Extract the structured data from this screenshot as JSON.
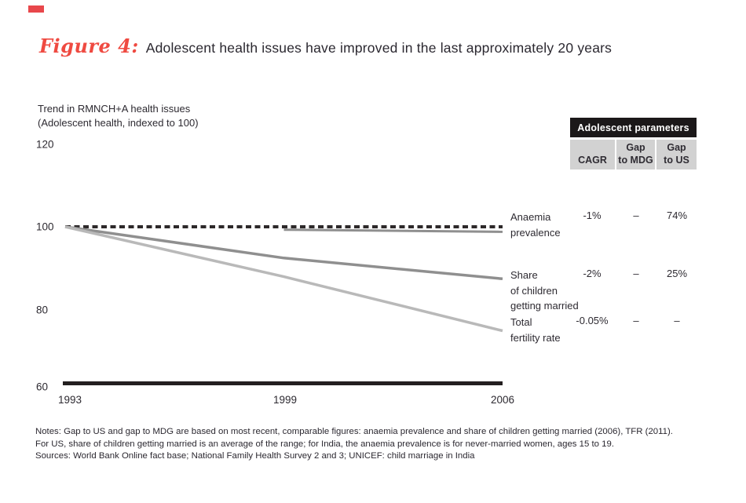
{
  "header": {
    "figure_label": "Figure 4:",
    "title": "Adolescent health issues have improved in the last approximately 20 years",
    "accent_color": "#ef4a41"
  },
  "axis": {
    "y_title_line1": "Trend in RMNCH+A health issues",
    "y_title_line2": "(Adolescent health, indexed to 100)",
    "y_ticks": {
      "t120": "120",
      "t100": "100",
      "t80": "80",
      "t60": "60"
    },
    "x_ticks": {
      "t1993": "1993",
      "t1999": "1999",
      "t2006": "2006"
    }
  },
  "chart_data": {
    "type": "line",
    "title": "Adolescent health issues have improved in the last approximately 20 years",
    "ylabel": "Trend in RMNCH+A health issues (Adolescent health, indexed to 100)",
    "x_tick_labels": [
      "1993",
      "1999",
      "2006"
    ],
    "ylim": [
      60,
      120
    ],
    "y_tick_values": [
      120,
      100,
      80,
      60
    ],
    "grid": false,
    "legend_position": "right-of-line-ends",
    "series": [
      {
        "id": "anaemia-indexed",
        "name": "Anaemia prevalence (index reference)",
        "x": [
          1993,
          2006
        ],
        "values": [
          100,
          100
        ],
        "color": "#2d292a",
        "width": 4,
        "dash": "7 4.5"
      },
      {
        "id": "anaemia-observed",
        "name": "Anaemia prevalence (observed 1999-2006)",
        "x": [
          1999,
          2006
        ],
        "values": [
          99.3,
          98.8
        ],
        "color": "#8f8f8f",
        "width": 3,
        "dash": null
      },
      {
        "id": "share-married",
        "name": "Share of children getting married",
        "x": [
          1993,
          1999,
          2006
        ],
        "values": [
          100,
          92.5,
          87.5
        ],
        "color": "#8f8f8f",
        "width": 3.5,
        "dash": null
      },
      {
        "id": "tfr",
        "name": "Total fertility rate",
        "x": [
          1993,
          1999,
          2006
        ],
        "values": [
          100,
          88,
          75
        ],
        "color": "#b9b9b9",
        "width": 3.5,
        "dash": null
      }
    ]
  },
  "legend": {
    "rows": [
      {
        "lines": [
          "Anaemia",
          "prevalence",
          ""
        ]
      },
      {
        "lines": [
          "Share",
          "of children",
          "getting married"
        ]
      },
      {
        "lines": [
          "Total",
          "fertility rate",
          ""
        ]
      }
    ]
  },
  "table": {
    "title": "Adolescent parameters",
    "header_bg": "#1b1819",
    "cell_bg": "#d2d2d2",
    "columns": [
      {
        "top": "",
        "bottom": "CAGR"
      },
      {
        "top": "Gap",
        "bottom": "to MDG"
      },
      {
        "top": "Gap",
        "bottom": "to US"
      }
    ],
    "rows": [
      {
        "label": "Anaemia prevalence",
        "cagr": "-1%",
        "gap_mdg": "–",
        "gap_us": "74%"
      },
      {
        "label": "Share of children getting married",
        "cagr": "-2%",
        "gap_mdg": "–",
        "gap_us": "25%"
      },
      {
        "label": "Total fertility rate",
        "cagr": "-0.05%",
        "gap_mdg": "–",
        "gap_us": "–"
      }
    ]
  },
  "notes": {
    "line1": "Notes: Gap to US and gap to MDG are based on most recent, comparable figures: anaemia prevalence and share of children getting married (2006), TFR (2011).",
    "line2": "For US, share of children getting married is an average of the range; for India, the anaemia prevalence is for never-married women, ages 15 to 19.",
    "line3": "Sources: World Bank Online fact base; National Family Health Survey 2 and 3; UNICEF: child marriage in India"
  }
}
